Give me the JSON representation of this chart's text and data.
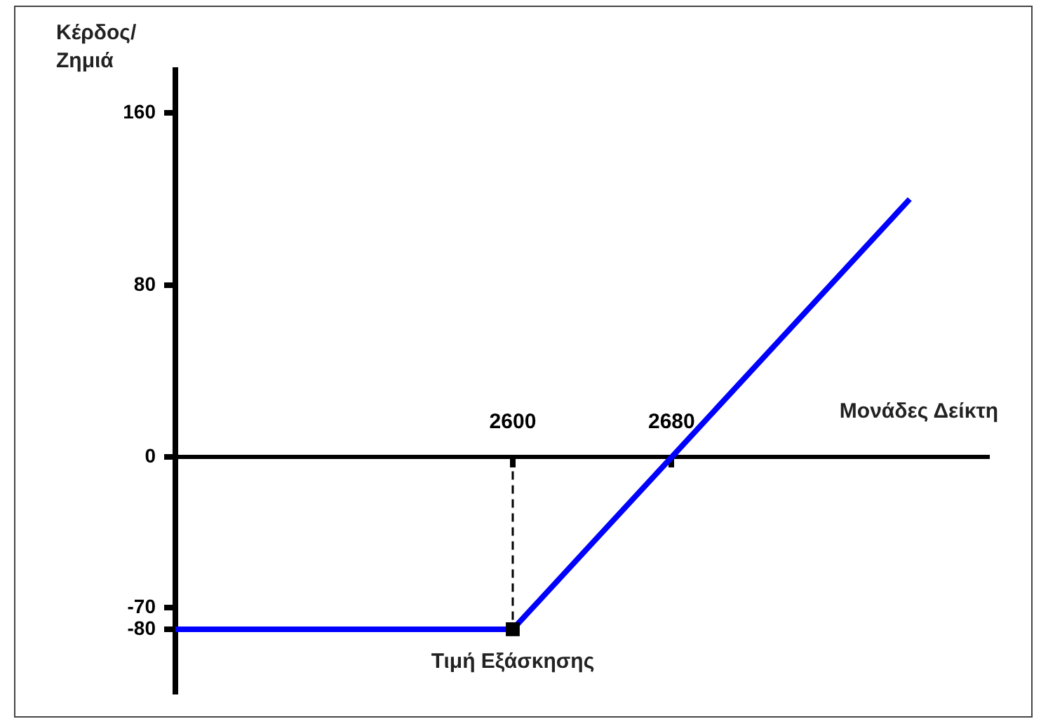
{
  "chart_data": {
    "type": "line",
    "ylabel": "Κέρδος/ Ζημιά",
    "xlabel": "Μονάδες Δείκτη",
    "xlim": [
      2430,
      2840
    ],
    "ylim": [
      -110,
      180
    ],
    "xticks": [
      2600,
      2680
    ],
    "yticks": [
      160,
      80,
      0,
      -70,
      -80
    ],
    "legend": false,
    "grid": false,
    "series": [
      {
        "type": "line",
        "color": "#0000ff",
        "marker": "none",
        "line_style": "solid",
        "x": [
          2430,
          2600,
          2680,
          2800
        ],
        "values": [
          -80,
          -80,
          0,
          120
        ]
      },
      {
        "type": "line",
        "color": "#000000",
        "marker": "none",
        "line_style": "dashed",
        "x": [
          2600,
          2600
        ],
        "values": [
          0,
          -80
        ]
      },
      {
        "type": "scatter",
        "color": "#000000",
        "marker": "square",
        "x": [
          2600
        ],
        "values": [
          -80
        ]
      }
    ],
    "annotations": [
      {
        "text": "Τιμή Εξάσκησης",
        "x": 2600,
        "y": -80
      }
    ]
  }
}
